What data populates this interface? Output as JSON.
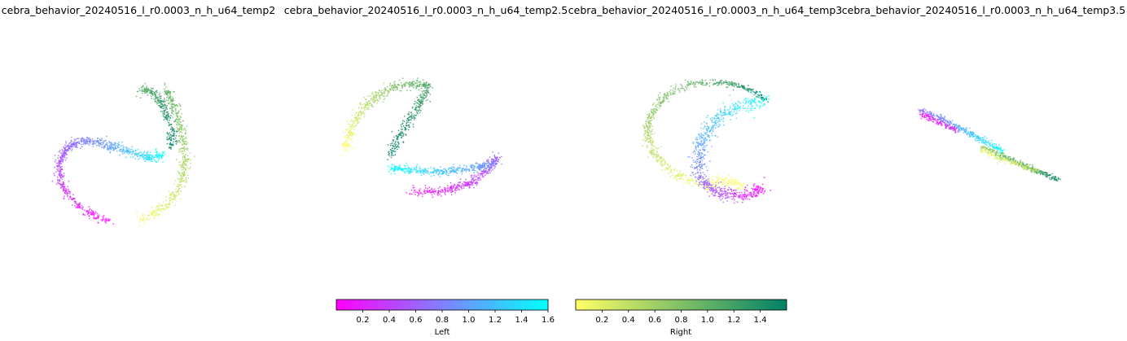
{
  "chart_data": {
    "type": "scatter",
    "panels": [
      {
        "title": "cebra_behavior_20240516_l_r0.0003_n_h_u64_temp2"
      },
      {
        "title": "cebra_behavior_20240516_l_r0.0003_n_h_u64_temp2.5"
      },
      {
        "title": "cebra_behavior_20240516_l_r0.0003_n_h_u64_temp3"
      },
      {
        "title": "cebra_behavior_20240516_l_r0.0003_n_h_u64_temp3.5"
      }
    ],
    "colorbars": [
      {
        "label": "Left",
        "range": [
          0.0,
          1.6
        ],
        "ticks": [
          "0.2",
          "0.4",
          "0.6",
          "0.8",
          "1.0",
          "1.2",
          "1.4",
          "1.6"
        ],
        "tick_values": [
          0.2,
          0.4,
          0.6,
          0.8,
          1.0,
          1.2,
          1.4,
          1.6
        ],
        "colors": [
          "#ff00ff",
          "#00ffff"
        ]
      },
      {
        "label": "Right",
        "range": [
          0.0,
          1.6
        ],
        "ticks": [
          "0.2",
          "0.4",
          "0.6",
          "0.8",
          "1.0",
          "1.2",
          "1.4"
        ],
        "tick_values": [
          0.2,
          0.4,
          0.6,
          0.8,
          1.0,
          1.2,
          1.4
        ],
        "colors": [
          "#ffff66",
          "#008066"
        ]
      }
    ],
    "grid": false,
    "axes_visible": false
  }
}
